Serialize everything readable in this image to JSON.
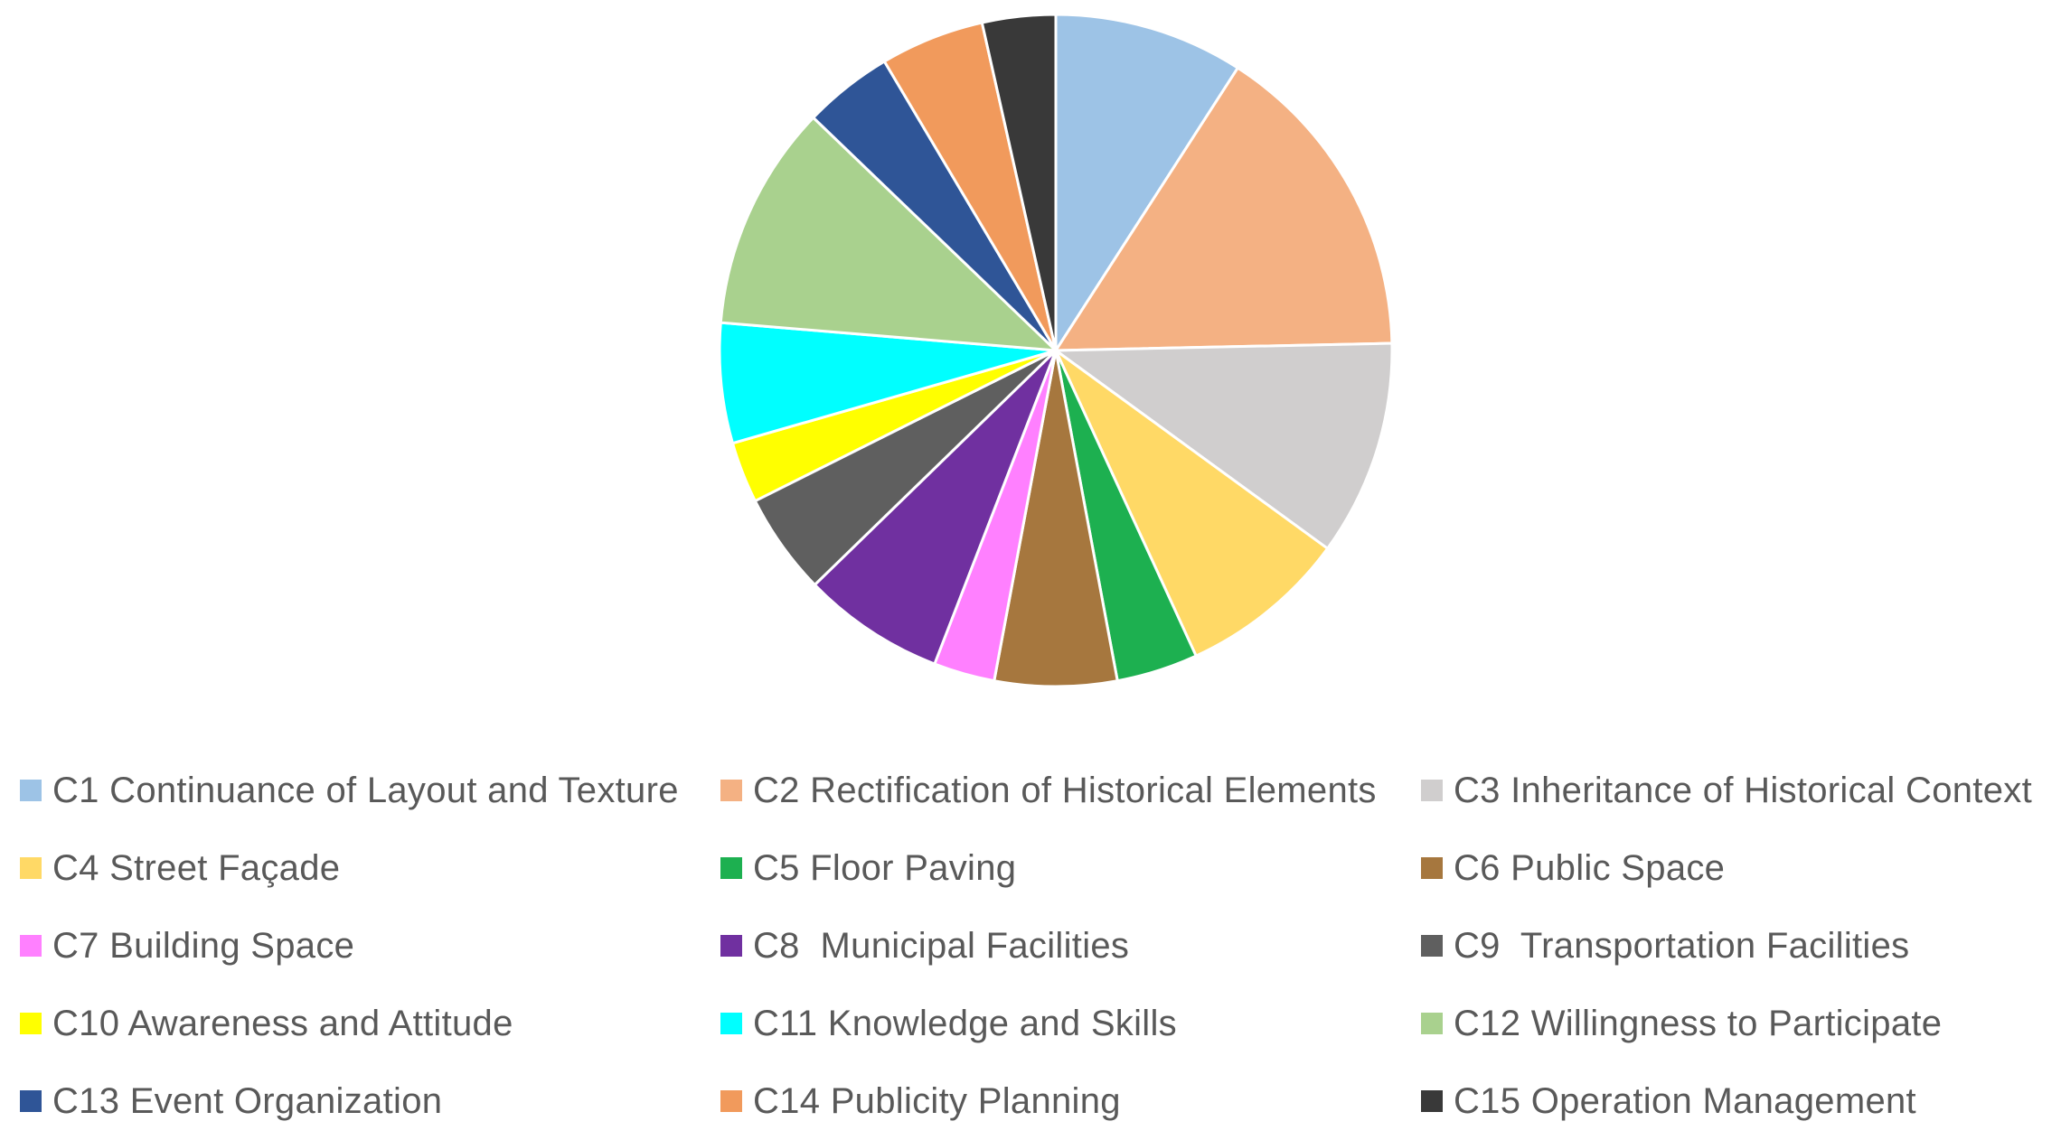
{
  "chart_data": {
    "type": "pie",
    "title": "",
    "start_angle_deg": 0,
    "direction": "clockwise",
    "slices": [
      {
        "label": "C1 Continuance of Layout and Texture",
        "value": 9.3,
        "color": "#9DC3E6"
      },
      {
        "label": "C2 Rectification of Historical Elements",
        "value": 15.9,
        "color": "#F4B183"
      },
      {
        "label": "C3 Inheritance of Historical Context",
        "value": 10.6,
        "color": "#D0CECE"
      },
      {
        "label": "C4 Street Façade",
        "value": 8.3,
        "color": "#FFD966"
      },
      {
        "label": "C5 Floor Paving",
        "value": 4.0,
        "color": "#1DB050"
      },
      {
        "label": "C6 Public Space",
        "value": 6.0,
        "color": "#A6773E"
      },
      {
        "label": "C7 Building Space",
        "value": 3.0,
        "color": "#FF80FF"
      },
      {
        "label": "C8  Municipal Facilities",
        "value": 7.0,
        "color": "#7030A0"
      },
      {
        "label": "C9  Transportation Facilities",
        "value": 5.0,
        "color": "#5F5F5F"
      },
      {
        "label": "C10 Awareness and Attitude",
        "value": 3.0,
        "color": "#FFFF00"
      },
      {
        "label": "C11 Knowledge and Skills",
        "value": 5.9,
        "color": "#00FFFF"
      },
      {
        "label": "C12 Willingness to Participate",
        "value": 11.1,
        "color": "#A9D18E"
      },
      {
        "label": "C13 Event Organization",
        "value": 4.4,
        "color": "#2F5597"
      },
      {
        "label": "C14 Publicity Planning",
        "value": 5.1,
        "color": "#F19A5C"
      },
      {
        "label": "C15 Operation Management",
        "value": 3.6,
        "color": "#393939"
      }
    ],
    "legend_position": "bottom"
  }
}
